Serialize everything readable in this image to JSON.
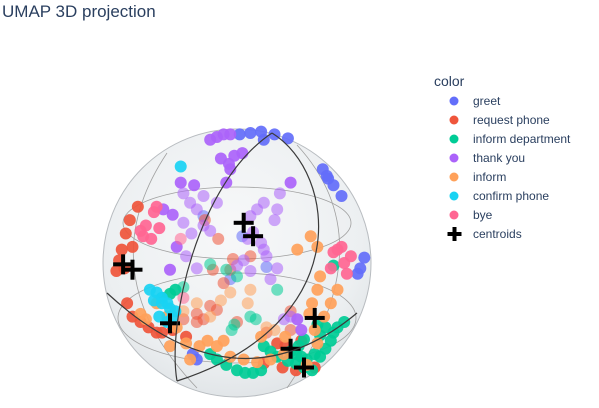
{
  "title": "UMAP 3D projection",
  "legend": {
    "title": "color",
    "placement": "right"
  },
  "colors": {
    "greet": "#636efa",
    "request phone": "#ef553b",
    "inform department": "#00cc96",
    "thank you": "#ab63fa",
    "inform": "#ffa15a",
    "confirm phone": "#19d3f3",
    "bye": "#ff6692",
    "centroids": "#000000",
    "sphere": "#e5e9ec",
    "sphere_edge": "#3a3a3a",
    "meridian": "#a0a0a0"
  },
  "chart_data": {
    "type": "scatter",
    "projection": "3d-sphere",
    "title": "UMAP 3D projection",
    "legend_title": "color",
    "series": [
      {
        "name": "greet",
        "points": [
          [
            2,
            96
          ],
          [
            10,
            97
          ],
          [
            18,
            98
          ],
          [
            28,
            96
          ],
          [
            38,
            93
          ],
          [
            20,
            92
          ],
          [
            4,
            20
          ],
          [
            22,
            -3
          ],
          [
            -30,
            -72
          ],
          [
            -33,
            -68
          ],
          [
            92,
            -4
          ],
          [
            95,
            4
          ],
          [
            90,
            -8
          ],
          [
            -5,
            -12
          ],
          [
            -25,
            35
          ],
          [
            64,
            70
          ],
          [
            68,
            63
          ],
          [
            72,
            58
          ],
          [
            67,
            65
          ],
          [
            78,
            50
          ]
        ]
      },
      {
        "name": "request phone",
        "points": [
          [
            -74,
            42
          ],
          [
            -80,
            32
          ],
          [
            -83,
            22
          ],
          [
            -86,
            10
          ],
          [
            -88,
            2
          ],
          [
            -90,
            -6
          ],
          [
            -84,
            -4
          ],
          [
            -78,
            12
          ],
          [
            -82,
            -30
          ],
          [
            -78,
            -40
          ],
          [
            -72,
            -44
          ],
          [
            -66,
            -48
          ],
          [
            -60,
            -52
          ],
          [
            -56,
            -52
          ],
          [
            -48,
            -50
          ],
          [
            -40,
            -42
          ],
          [
            -30,
            -38
          ],
          [
            -20,
            -32
          ],
          [
            -15,
            -35
          ],
          [
            -30,
            -44
          ],
          [
            -10,
            -15
          ],
          [
            -18,
            -5
          ],
          [
            -5,
            -5
          ],
          [
            10,
            5
          ],
          [
            -3,
            3
          ],
          [
            -24,
            32
          ],
          [
            -14,
            18
          ],
          [
            40,
            -50
          ],
          [
            48,
            -58
          ],
          [
            30,
            -60
          ],
          [
            22,
            -52
          ],
          [
            40,
            -36
          ],
          [
            36,
            -62
          ],
          [
            34,
            -78
          ],
          [
            58,
            -78
          ],
          [
            44,
            -80
          ],
          [
            20,
            -75
          ],
          [
            -25,
            -42
          ],
          [
            -38,
            -55
          ],
          [
            0,
            -44
          ]
        ]
      },
      {
        "name": "inform department",
        "points": [
          [
            -20,
            -1
          ],
          [
            -8,
            -5
          ],
          [
            0,
            -10
          ],
          [
            -46,
            -20
          ],
          [
            -56,
            -26
          ],
          [
            -40,
            -18
          ],
          [
            -50,
            -23
          ],
          [
            30,
            -20
          ],
          [
            72,
            -2
          ],
          [
            10,
            -40
          ],
          [
            14,
            -42
          ],
          [
            -2,
            -46
          ],
          [
            -4,
            -50
          ],
          [
            20,
            -62
          ],
          [
            25,
            -66
          ],
          [
            30,
            -70
          ],
          [
            38,
            -73
          ],
          [
            44,
            -75
          ],
          [
            50,
            -78
          ],
          [
            56,
            -80
          ],
          [
            62,
            -70
          ],
          [
            66,
            -64
          ],
          [
            70,
            -58
          ],
          [
            72,
            -52
          ],
          [
            75,
            -48
          ],
          [
            80,
            -44
          ],
          [
            58,
            -68
          ],
          [
            52,
            -72
          ],
          [
            48,
            -70
          ],
          [
            44,
            -68
          ],
          [
            40,
            -66
          ],
          [
            46,
            -62
          ],
          [
            50,
            -57
          ],
          [
            -20,
            -68
          ],
          [
            -15,
            -72
          ],
          [
            -8,
            -76
          ],
          [
            0,
            -80
          ],
          [
            6,
            -82
          ],
          [
            12,
            -82
          ],
          [
            18,
            -80
          ],
          [
            62,
            -54
          ],
          [
            66,
            -48
          ],
          [
            60,
            -46
          ]
        ]
      },
      {
        "name": "thank you",
        "points": [
          [
            -40,
            52
          ],
          [
            -35,
            45
          ],
          [
            -30,
            40
          ],
          [
            -25,
            28
          ],
          [
            -20,
            24
          ],
          [
            -34,
            22
          ],
          [
            -45,
            12
          ],
          [
            -38,
            5
          ],
          [
            -50,
            -5
          ],
          [
            -30,
            -4
          ],
          [
            -6,
            74
          ],
          [
            -2,
            80
          ],
          [
            4,
            82
          ],
          [
            -12,
            78
          ],
          [
            -5,
            70
          ],
          [
            -8,
            60
          ],
          [
            10,
            35
          ],
          [
            15,
            40
          ],
          [
            18,
            15
          ],
          [
            20,
            10
          ],
          [
            28,
            32
          ],
          [
            30,
            40
          ],
          [
            12,
            23
          ],
          [
            8,
            18
          ],
          [
            22,
            5
          ],
          [
            0,
            -2
          ],
          [
            5,
            2
          ],
          [
            10,
            -6
          ],
          [
            25,
            -12
          ],
          [
            30,
            -4
          ],
          [
            -40,
            30
          ],
          [
            -48,
            36
          ],
          [
            -55,
            40
          ],
          [
            -32,
            58
          ],
          [
            -42,
            60
          ],
          [
            -15,
            45
          ],
          [
            -25,
            50
          ],
          [
            40,
            -40
          ],
          [
            35,
            -42
          ],
          [
            48,
            -50
          ],
          [
            45,
            -42
          ],
          [
            -20,
            92
          ],
          [
            -15,
            94
          ],
          [
            -10,
            96
          ],
          [
            -5,
            96
          ],
          [
            20,
            45
          ],
          [
            32,
            52
          ],
          [
            40,
            60
          ]
        ]
      },
      {
        "name": "inform",
        "points": [
          [
            55,
            20
          ],
          [
            60,
            12
          ],
          [
            62,
            -10
          ],
          [
            45,
            10
          ],
          [
            -35,
            -72
          ],
          [
            -38,
            -60
          ],
          [
            -28,
            -62
          ],
          [
            -22,
            -58
          ],
          [
            -15,
            -62
          ],
          [
            -5,
            -70
          ],
          [
            5,
            -72
          ],
          [
            15,
            -74
          ],
          [
            25,
            -72
          ],
          [
            35,
            -68
          ],
          [
            52,
            -76
          ],
          [
            60,
            -60
          ],
          [
            65,
            -40
          ],
          [
            70,
            -30
          ],
          [
            75,
            -20
          ],
          [
            -72,
            -38
          ],
          [
            -68,
            -42
          ],
          [
            -60,
            -30
          ],
          [
            -52,
            -40
          ],
          [
            -45,
            -48
          ],
          [
            -40,
            -36
          ],
          [
            -30,
            -30
          ],
          [
            -20,
            -40
          ],
          [
            18,
            -55
          ],
          [
            22,
            -48
          ],
          [
            28,
            -50
          ],
          [
            36,
            -55
          ],
          [
            54,
            -38
          ],
          [
            58,
            -50
          ],
          [
            56,
            -30
          ],
          [
            -5,
            -22
          ],
          [
            -12,
            -28
          ],
          [
            8,
            -30
          ],
          [
            10,
            -20
          ],
          [
            -50,
            -62
          ],
          [
            -10,
            -58
          ],
          [
            60,
            -20
          ]
        ]
      },
      {
        "name": "confirm phone",
        "points": [
          [
            -42,
            72
          ],
          [
            -65,
            -20
          ],
          [
            -60,
            -22
          ],
          [
            -56,
            -26
          ],
          [
            -52,
            -30
          ],
          [
            -50,
            -34
          ],
          [
            -48,
            -40
          ],
          [
            -56,
            -30
          ],
          [
            -62,
            -28
          ],
          [
            -58,
            -40
          ],
          [
            -46,
            -36
          ],
          [
            -52,
            -44
          ]
        ]
      },
      {
        "name": "bye",
        "points": [
          [
            -68,
            28
          ],
          [
            -62,
            38
          ],
          [
            -70,
            20
          ],
          [
            -64,
            18
          ],
          [
            -72,
            24
          ],
          [
            -58,
            26
          ],
          [
            -40,
            -26
          ],
          [
            -60,
            42
          ],
          [
            75,
            10
          ],
          [
            80,
            0
          ],
          [
            85,
            5
          ],
          [
            78,
            12
          ],
          [
            70,
            -4
          ],
          [
            72,
            8
          ],
          [
            82,
            -8
          ],
          [
            -42,
            18
          ]
        ]
      },
      {
        "name": "centroids",
        "marker": "cross",
        "points": [
          [
            -85,
            -1
          ],
          [
            5,
            30
          ],
          [
            12,
            20
          ],
          [
            58,
            -41
          ],
          [
            40,
            -64
          ],
          [
            50,
            -78
          ],
          [
            -50,
            -45
          ],
          [
            -78,
            -5
          ]
        ]
      }
    ],
    "axes": {
      "visible": false,
      "grid": false
    }
  }
}
